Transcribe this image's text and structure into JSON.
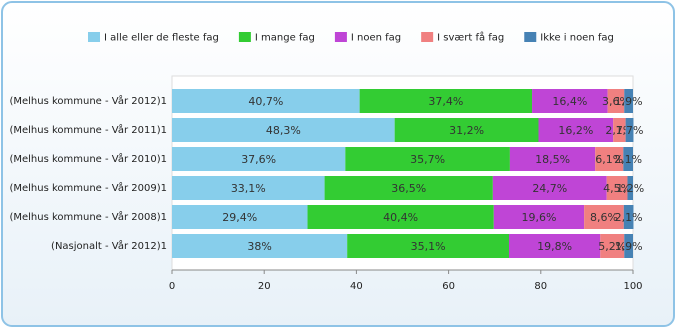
{
  "chart_data": {
    "type": "bar",
    "orientation": "horizontal",
    "stacked": true,
    "categories": [
      "(Melhus kommune - Vår 2012)1",
      "(Melhus kommune - Vår 2011)1",
      "(Melhus kommune - Vår 2010)1",
      "(Melhus kommune - Vår 2009)1",
      "(Melhus kommune - Vår 2008)1",
      "(Nasjonalt - Vår 2012)1"
    ],
    "series": [
      {
        "name": "I alle eller de fleste fag",
        "color": "#87ceeb",
        "values": [
          40.7,
          48.3,
          37.6,
          33.1,
          29.4,
          38
        ],
        "value_labels": [
          "40,7%",
          "48,3%",
          "37,6%",
          "33,1%",
          "29,4%",
          "38%"
        ]
      },
      {
        "name": "I mange fag",
        "color": "#33cc33",
        "values": [
          37.4,
          31.2,
          35.7,
          36.5,
          40.4,
          35.1
        ],
        "value_labels": [
          "37,4%",
          "31,2%",
          "35,7%",
          "36,5%",
          "40,4%",
          "35,1%"
        ]
      },
      {
        "name": "I noen fag",
        "color": "#bf45d6",
        "values": [
          16.4,
          16.2,
          18.5,
          24.7,
          19.6,
          19.8
        ],
        "value_labels": [
          "16,4%",
          "16,2%",
          "18,5%",
          "24,7%",
          "19,6%",
          "19,8%"
        ]
      },
      {
        "name": "I svært få fag",
        "color": "#f08080",
        "values": [
          3.6,
          2.7,
          6.1,
          4.5,
          8.6,
          5.2
        ],
        "value_labels": [
          "3,6%",
          "2,7%",
          "6,1%",
          "4,5%",
          "8,6%",
          "5,2%"
        ]
      },
      {
        "name": "Ikke i noen fag",
        "color": "#4682b4",
        "values": [
          1.9,
          1.7,
          2.1,
          1.2,
          2.1,
          1.9
        ],
        "value_labels": [
          "1,9%",
          "1,7%",
          "2,1%",
          "1,2%",
          "2,1%",
          "1,9%"
        ]
      }
    ],
    "xlim": [
      0,
      100
    ],
    "xticks": [
      0,
      20,
      40,
      60,
      80,
      100
    ],
    "legend": "top"
  }
}
